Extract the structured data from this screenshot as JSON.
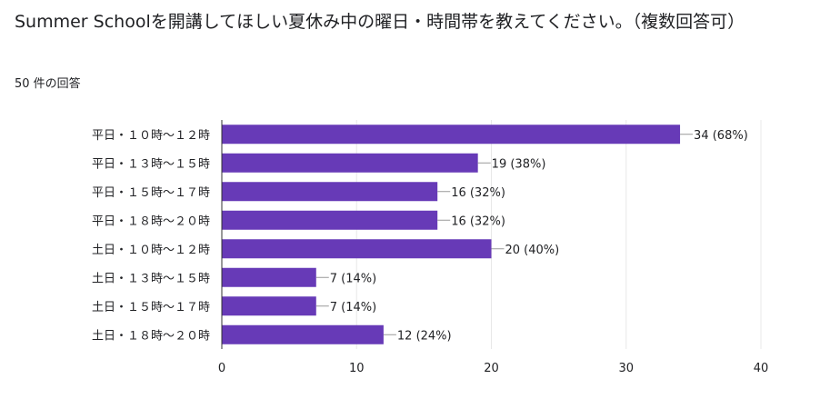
{
  "question": {
    "title": "Summer Schoolを開講してほしい夏休み中の曜日・時間帯を教えてください。（複数回答可）",
    "response_count": "50 件の回答"
  },
  "colors": {
    "bar": "#673ab7",
    "grid": "#e8e8e8",
    "axis": "#333333",
    "connector": "#999999"
  },
  "chart_data": {
    "type": "bar",
    "orientation": "horizontal",
    "title": "",
    "xlabel": "",
    "ylabel": "",
    "categories": [
      "平日・１０時～１２時",
      "平日・１３時～１５時",
      "平日・１５時～１７時",
      "平日・１８時～２０時",
      "土日・１０時～１２時",
      "土日・１３時～１５時",
      "土日・１５時～１７時",
      "土日・１８時～２０時"
    ],
    "values": [
      34,
      19,
      16,
      16,
      20,
      7,
      7,
      12
    ],
    "value_labels": [
      "34 (68%)",
      "19 (38%)",
      "16 (32%)",
      "16 (32%)",
      "20 (40%)",
      "7 (14%)",
      "7 (14%)",
      "12 (24%)"
    ],
    "xlim": [
      0,
      40
    ],
    "xticks": [
      0,
      10,
      20,
      30,
      40
    ],
    "grid": true
  }
}
